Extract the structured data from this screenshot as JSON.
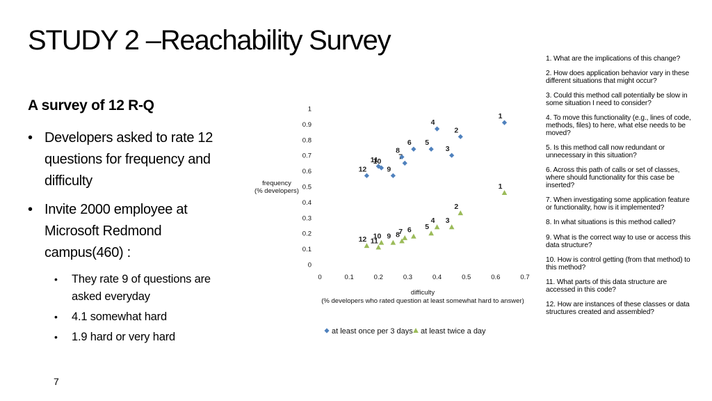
{
  "slide": {
    "title": "STUDY 2 –Reachability Survey",
    "subtitle": "A survey of 12 R-Q",
    "bullets": [
      {
        "text": "Developers asked to rate 12 questions for frequency and difficulty",
        "sub": []
      },
      {
        "text": "Invite 2000 employee at Microsoft Redmond campus(460) :",
        "sub": [
          "They rate 9 of questions are asked everyday",
          "4.1 somewhat hard",
          "1.9 hard or very hard"
        ]
      }
    ],
    "bullet_glyph": "•",
    "page_number": "7"
  },
  "questions": [
    "1. What are the implications of this change?",
    "2. How does application behavior vary in these different situations that might occur?",
    "3. Could this method call potentially be slow in some situation I need to consider?",
    "4. To move this functionality (e.g., lines of code, methods, files) to here, what else needs to be moved?",
    "5. Is this method call now redundant or unnecessary in this situation?",
    "6. Across this path of calls or set of classes, where should functionality for this case be inserted?",
    "7. When investigating some application feature or functionality, how is it implemented?",
    "8. In what situations is this method called?",
    "9. What is the correct way to use or access this data structure?",
    "10. How is control getting (from that method) to this method?",
    "11. What parts of this data structure are accessed in this code?",
    "12. How are instances of these classes or data structures created and assembled?"
  ],
  "chart_data": {
    "type": "scatter",
    "xlabel": [
      "difficulty",
      "(% developers who rated question at least somewhat hard to answer)"
    ],
    "ylabel": [
      "frequency",
      "(% developers)"
    ],
    "xlim": [
      0,
      0.7
    ],
    "ylim": [
      0,
      1
    ],
    "xticks": [
      "0",
      "0.1",
      "0.2",
      "0.3",
      "0.4",
      "0.5",
      "0.6",
      "0.7"
    ],
    "yticks": [
      "0",
      "0.1",
      "0.2",
      "0.3",
      "0.4",
      "0.5",
      "0.6",
      "0.7",
      "0.8",
      "0.9",
      "1"
    ],
    "grid": false,
    "legend_position": "bottom",
    "series": [
      {
        "name": "at least once per 3 days",
        "marker": "diamond",
        "color": "#4f81bd",
        "points": [
          {
            "label": "1",
            "x": 0.63,
            "y": 0.91
          },
          {
            "label": "2",
            "x": 0.48,
            "y": 0.82
          },
          {
            "label": "3",
            "x": 0.45,
            "y": 0.7
          },
          {
            "label": "4",
            "x": 0.4,
            "y": 0.87
          },
          {
            "label": "5",
            "x": 0.38,
            "y": 0.74
          },
          {
            "label": "6",
            "x": 0.32,
            "y": 0.74
          },
          {
            "label": "7",
            "x": 0.29,
            "y": 0.65
          },
          {
            "label": "8",
            "x": 0.28,
            "y": 0.69
          },
          {
            "label": "9",
            "x": 0.25,
            "y": 0.57
          },
          {
            "label": "10",
            "x": 0.21,
            "y": 0.62
          },
          {
            "label": "11",
            "x": 0.2,
            "y": 0.63
          },
          {
            "label": "12",
            "x": 0.16,
            "y": 0.57
          }
        ]
      },
      {
        "name": "at least twice a day",
        "marker": "triangle",
        "color": "#9bbb59",
        "points": [
          {
            "label": "1",
            "x": 0.63,
            "y": 0.46
          },
          {
            "label": "2",
            "x": 0.48,
            "y": 0.33
          },
          {
            "label": "3",
            "x": 0.45,
            "y": 0.24
          },
          {
            "label": "4",
            "x": 0.4,
            "y": 0.24
          },
          {
            "label": "5",
            "x": 0.38,
            "y": 0.2
          },
          {
            "label": "6",
            "x": 0.32,
            "y": 0.18
          },
          {
            "label": "7",
            "x": 0.29,
            "y": 0.17
          },
          {
            "label": "8",
            "x": 0.28,
            "y": 0.15
          },
          {
            "label": "9",
            "x": 0.25,
            "y": 0.14
          },
          {
            "label": "10",
            "x": 0.21,
            "y": 0.14
          },
          {
            "label": "11",
            "x": 0.2,
            "y": 0.11
          },
          {
            "label": "12",
            "x": 0.16,
            "y": 0.12
          }
        ]
      }
    ]
  }
}
